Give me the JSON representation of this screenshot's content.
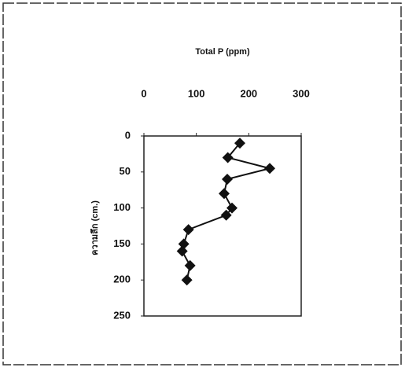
{
  "chart_data": {
    "type": "line",
    "title": "Total P (ppm)",
    "y_label": "ความลึก (cm.)",
    "depth": [
      10,
      30,
      45,
      60,
      80,
      100,
      110,
      130,
      150,
      160,
      180,
      200
    ],
    "series": [
      {
        "color": "#111111",
        "values": [
          183,
          160,
          240,
          159,
          153,
          168,
          157,
          85,
          76,
          73,
          88,
          82
        ]
      }
    ],
    "xlim": [
      0,
      300
    ],
    "xticks": [
      0,
      100,
      200,
      300
    ],
    "ylim": [
      0,
      250
    ],
    "yticks": [
      0,
      50,
      100,
      150,
      200,
      250
    ]
  }
}
